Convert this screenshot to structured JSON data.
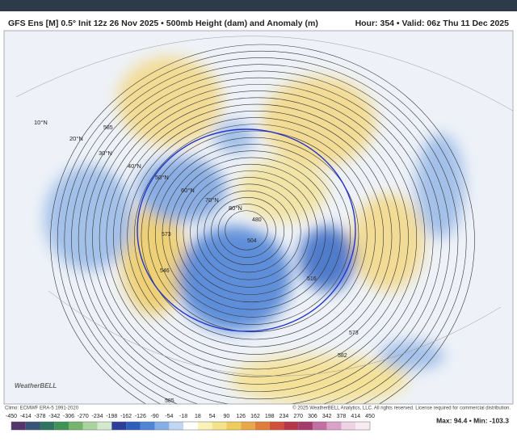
{
  "header": {
    "title": "GFS Ens [M] 0.5° Init 12z 26 Nov 2025 • 500mb Height (dam) and Anomaly (m)",
    "valid": "Hour: 354 • Valid: 06z Thu 11 Dec 2025"
  },
  "map": {
    "latitude_labels": [
      "10°N",
      "20°N",
      "30°N",
      "40°N",
      "50°N",
      "60°N",
      "70°N",
      "80°N"
    ],
    "contour_labels": [
      "585",
      "573",
      "546",
      "516",
      "504",
      "480",
      "582",
      "573",
      "585"
    ]
  },
  "footer": {
    "logo": "WeatherBELL",
    "climo": "Climo: ECMWF ERA-5 1991-2020",
    "copyright": "© 2025 WeatherBELL Analytics, LLC. All rights reserved. License required for commercial distribution."
  },
  "colorbar": {
    "ticks": [
      -450,
      -414,
      -378,
      -342,
      -306,
      -270,
      -234,
      -198,
      -162,
      -126,
      -90,
      -54,
      -18,
      18,
      54,
      90,
      126,
      162,
      198,
      234,
      270,
      306,
      342,
      378,
      414,
      450
    ],
    "colors": [
      "#55346b",
      "#38547a",
      "#2f7460",
      "#3f9356",
      "#74b46d",
      "#a9d39f",
      "#d4e8cc",
      "#2b3f9a",
      "#2f5fbd",
      "#4f84d6",
      "#86afe7",
      "#c0d6f3",
      "#ffffff",
      "#fbf2b8",
      "#f5e38c",
      "#eecd5f",
      "#e8a84a",
      "#e07d3a",
      "#d2503a",
      "#b8364a",
      "#a33b6b",
      "#c46fa3",
      "#dca3c8",
      "#efd2e4",
      "#f7eaf2"
    ]
  },
  "stats": "Max: 94.4 • Min: -103.3"
}
